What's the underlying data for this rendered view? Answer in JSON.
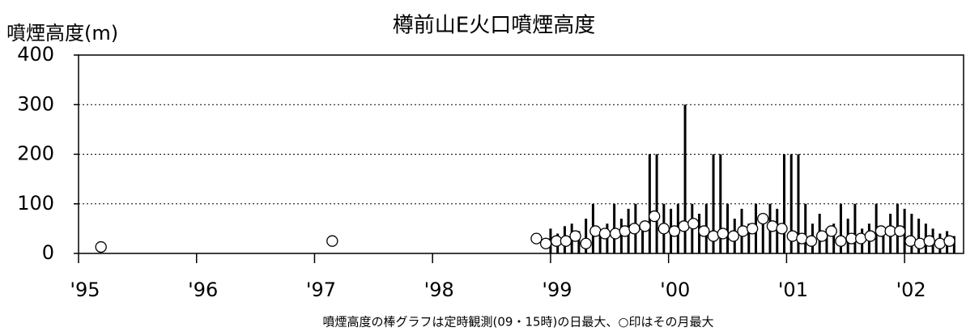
{
  "chart_data": {
    "type": "combo",
    "title": "樽前山E火口噴煙高度",
    "y_label": "噴煙高度(m)",
    "note": "噴煙高度の棒グラフは定時観測(09・15時)の日最大、○印はその月最大",
    "xlim": [
      1995,
      2002.5
    ],
    "xticks": [
      {
        "value": 1995,
        "label": "'95"
      },
      {
        "value": 1996,
        "label": "'96"
      },
      {
        "value": 1997,
        "label": "'97"
      },
      {
        "value": 1998,
        "label": "'98"
      },
      {
        "value": 1999,
        "label": "'99"
      },
      {
        "value": 2000,
        "label": "'00"
      },
      {
        "value": 2001,
        "label": "'01"
      },
      {
        "value": 2002,
        "label": "'02"
      }
    ],
    "ylim": [
      0,
      400
    ],
    "yticks": [
      0,
      100,
      200,
      300,
      400
    ],
    "grid": true,
    "series": [
      {
        "type": "bar",
        "color": "#000000",
        "x": [
          1999.0,
          1999.06,
          1999.12,
          1999.18,
          1999.24,
          1999.3,
          1999.36,
          1999.42,
          1999.48,
          1999.54,
          1999.6,
          1999.66,
          1999.72,
          1999.78,
          1999.84,
          1999.9,
          1999.96,
          2000.02,
          2000.08,
          2000.14,
          2000.2,
          2000.26,
          2000.32,
          2000.38,
          2000.44,
          2000.5,
          2000.56,
          2000.62,
          2000.68,
          2000.74,
          2000.8,
          2000.86,
          2000.92,
          2000.98,
          2001.04,
          2001.1,
          2001.16,
          2001.22,
          2001.28,
          2001.34,
          2001.4,
          2001.46,
          2001.52,
          2001.58,
          2001.64,
          2001.7,
          2001.76,
          2001.82,
          2001.88,
          2001.94,
          2002.0,
          2002.06,
          2002.12,
          2002.18,
          2002.24,
          2002.3,
          2002.36,
          2002.42
        ],
        "values": [
          50,
          40,
          55,
          60,
          45,
          70,
          100,
          40,
          60,
          100,
          70,
          90,
          100,
          60,
          200,
          200,
          100,
          90,
          100,
          300,
          100,
          80,
          100,
          200,
          200,
          100,
          70,
          90,
          60,
          100,
          70,
          100,
          90,
          200,
          200,
          200,
          100,
          60,
          80,
          50,
          60,
          100,
          70,
          100,
          50,
          60,
          100,
          50,
          80,
          100,
          90,
          80,
          70,
          60,
          50,
          40,
          45,
          35
        ]
      },
      {
        "type": "scatter",
        "color": "#ffffff",
        "x": [
          1995.19,
          1997.15,
          1998.88,
          1998.96,
          1999.05,
          1999.13,
          1999.21,
          1999.3,
          1999.38,
          1999.46,
          1999.55,
          1999.63,
          1999.71,
          1999.8,
          1999.88,
          1999.96,
          2000.05,
          2000.13,
          2000.21,
          2000.3,
          2000.38,
          2000.46,
          2000.55,
          2000.63,
          2000.71,
          2000.8,
          2000.88,
          2000.96,
          2001.05,
          2001.13,
          2001.21,
          2001.3,
          2001.38,
          2001.46,
          2001.55,
          2001.63,
          2001.71,
          2001.8,
          2001.88,
          2001.96,
          2002.05,
          2002.13,
          2002.21,
          2002.3,
          2002.38
        ],
        "values": [
          13,
          25,
          30,
          20,
          25,
          25,
          35,
          20,
          45,
          40,
          40,
          45,
          50,
          55,
          75,
          50,
          45,
          55,
          60,
          45,
          35,
          40,
          35,
          45,
          50,
          70,
          55,
          50,
          35,
          30,
          25,
          35,
          45,
          25,
          30,
          30,
          35,
          45,
          45,
          45,
          25,
          20,
          25,
          20,
          25
        ]
      }
    ]
  }
}
